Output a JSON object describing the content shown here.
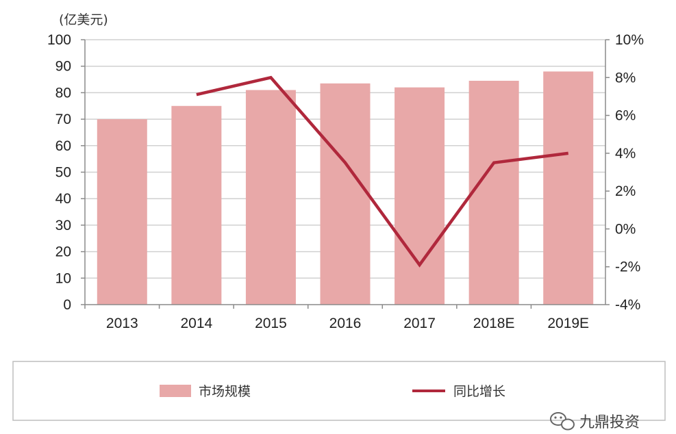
{
  "chart_data": {
    "type": "bar",
    "unit_label": "(亿美元)",
    "categories": [
      "2013",
      "2014",
      "2015",
      "2016",
      "2017",
      "2018E",
      "2019E"
    ],
    "series": [
      {
        "name": "市场规模",
        "type": "bar",
        "axis": "left",
        "values": [
          70,
          75,
          81,
          83.5,
          82,
          84.5,
          88
        ]
      },
      {
        "name": "同比增长",
        "type": "line",
        "axis": "right",
        "values": [
          null,
          0.071,
          0.08,
          0.035,
          -0.019,
          0.035,
          0.04
        ]
      }
    ],
    "ylim_left": [
      0,
      100
    ],
    "ylim_right": [
      -0.04,
      0.1
    ],
    "yticks_left": [
      "0",
      "10",
      "20",
      "30",
      "40",
      "50",
      "60",
      "70",
      "80",
      "90",
      "100"
    ],
    "yticks_right": [
      "-4%",
      "-2%",
      "0%",
      "2%",
      "4%",
      "6%",
      "8%",
      "10%"
    ],
    "grid": true,
    "legend": "bottom",
    "colors": {
      "bar": "#e8a8a8",
      "line": "#b0283c",
      "grid": "#d0d0d0"
    }
  },
  "watermark": {
    "text": "九鼎投资",
    "icon": "wechat-icon"
  }
}
